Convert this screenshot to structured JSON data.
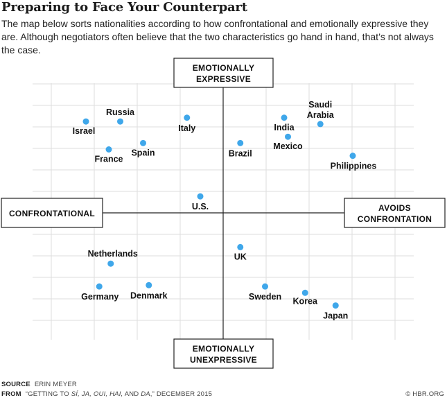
{
  "title": "Preparing to Face Your Counterpart",
  "subtitle": "The map below sorts nationalities according to how confrontational and emotionally expressive they are. Although negotiators often believe that the two characteristics go hand in hand, that’s not always the case.",
  "axis_labels": {
    "top": [
      "EMOTIONALLY",
      "EXPRESSIVE"
    ],
    "bottom": [
      "EMOTIONALLY",
      "UNEXPRESSIVE"
    ],
    "left": "CONFRONTATIONAL",
    "right": [
      "AVOIDS",
      "CONFRONTATION"
    ]
  },
  "footer": {
    "source_label": "SOURCE",
    "source_text": "ERIN MEYER",
    "from_label": "FROM",
    "from_pre": "“GETTING TO ",
    "from_italic": "SÍ, JA, OUI, HAI,",
    "from_mid": " AND ",
    "from_italic2": "DA",
    "from_post": ",” DECEMBER 2015",
    "credit": "© HBR.ORG"
  },
  "colors": {
    "point": "#3fa7ea",
    "grid": "#dedede",
    "axis": "#222222"
  },
  "chart_data": {
    "type": "scatter",
    "x_axis": "confrontational (negative) to avoids confrontation (positive)",
    "y_axis": "emotionally unexpressive (negative) to emotionally expressive (positive)",
    "xlim": [
      -10,
      10
    ],
    "ylim": [
      -10,
      10
    ],
    "grid": true,
    "points": [
      {
        "label": "Israel",
        "x": -7.2,
        "y": 7.2
      },
      {
        "label": "Russia",
        "x": -5.4,
        "y": 7.2
      },
      {
        "label": "France",
        "x": -6.0,
        "y": 5.0
      },
      {
        "label": "Spain",
        "x": -4.2,
        "y": 5.5
      },
      {
        "label": "Italy",
        "x": -1.9,
        "y": 7.5
      },
      {
        "label": "Brazil",
        "x": 0.9,
        "y": 5.5
      },
      {
        "label": "India",
        "x": 3.2,
        "y": 7.5
      },
      {
        "label": "Mexico",
        "x": 3.4,
        "y": 6.0
      },
      {
        "label": "Saudi Arabia",
        "x": 5.1,
        "y": 7.0
      },
      {
        "label": "Philippines",
        "x": 6.8,
        "y": 4.5
      },
      {
        "label": "U.S.",
        "x": -1.2,
        "y": 1.3
      },
      {
        "label": "UK",
        "x": 0.9,
        "y": -2.7
      },
      {
        "label": "Netherlands",
        "x": -5.9,
        "y": -4.0
      },
      {
        "label": "Germany",
        "x": -6.5,
        "y": -5.8
      },
      {
        "label": "Denmark",
        "x": -3.9,
        "y": -5.7
      },
      {
        "label": "Sweden",
        "x": 2.2,
        "y": -5.8
      },
      {
        "label": "Korea",
        "x": 4.3,
        "y": -6.3
      },
      {
        "label": "Japan",
        "x": 5.9,
        "y": -7.3
      }
    ]
  }
}
